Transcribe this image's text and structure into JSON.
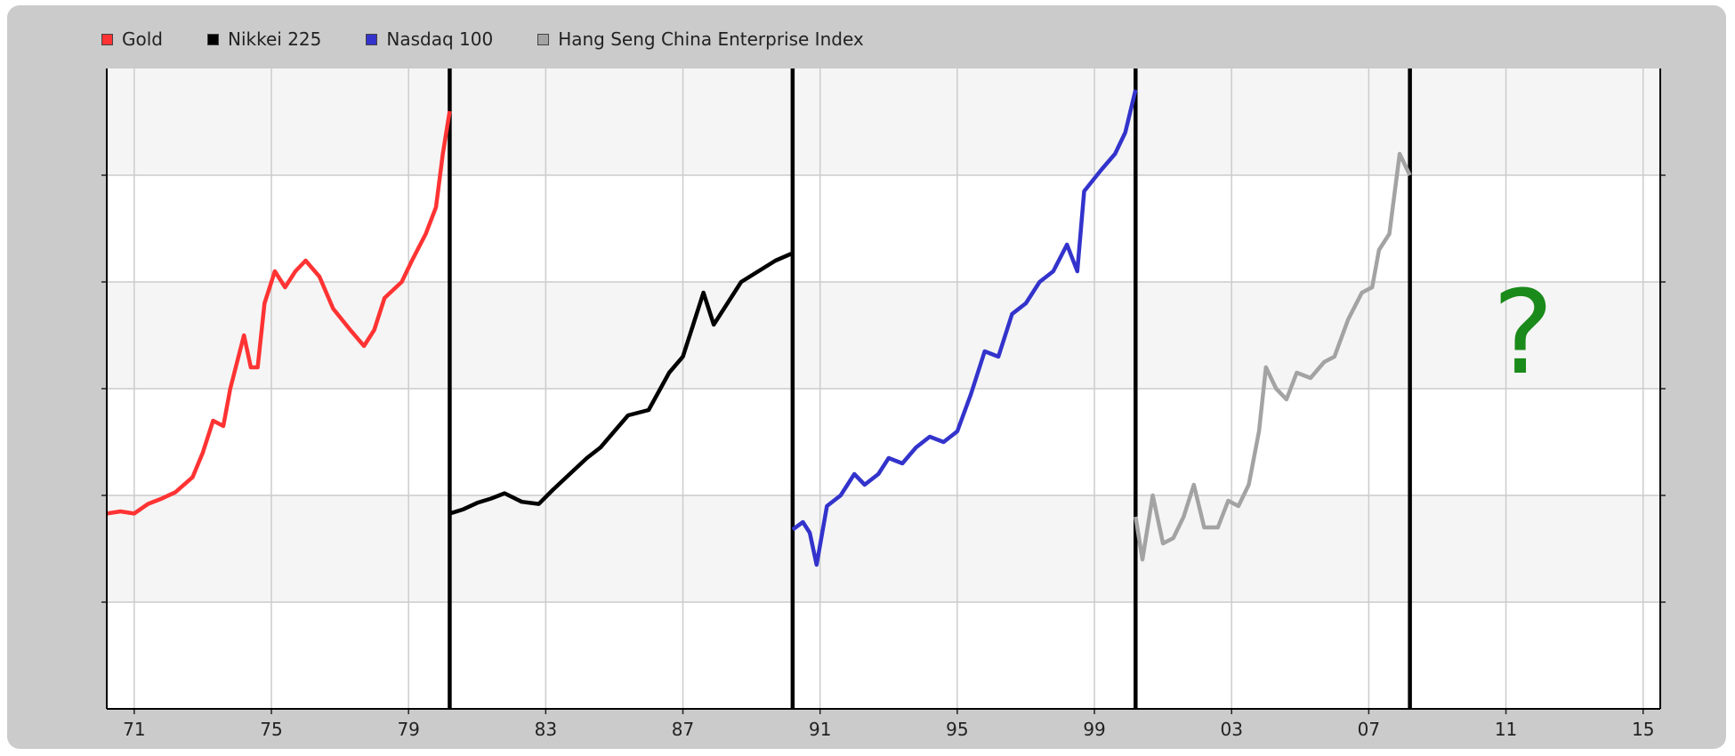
{
  "chart_data": {
    "type": "line",
    "title": "",
    "xlabel": "",
    "ylabel": "",
    "x_axis_kind": "year",
    "xlim": [
      1970.2,
      2015.5
    ],
    "ylim": [
      0,
      6
    ],
    "y_tick_labels_shown": false,
    "grid": true,
    "legend_position": "top-left",
    "x_tick_labels": [
      "71",
      "75",
      "79",
      "83",
      "87",
      "91",
      "95",
      "99",
      "03",
      "07",
      "11",
      "15"
    ],
    "x_tick_years": [
      1971,
      1975,
      1979,
      1983,
      1987,
      1991,
      1995,
      1999,
      2003,
      2007,
      2011,
      2015
    ],
    "period_dividers": [
      1980.2,
      1990.2,
      2000.2,
      2008.2
    ],
    "annotation": {
      "text": "?",
      "year": 2011.5,
      "color": "#1a8a1a"
    },
    "series": [
      {
        "name": "Gold",
        "color": "#ff3333",
        "points": [
          [
            1970.2,
            1.83
          ],
          [
            1970.6,
            1.85
          ],
          [
            1971.0,
            1.83
          ],
          [
            1971.4,
            1.92
          ],
          [
            1971.8,
            1.97
          ],
          [
            1972.2,
            2.03
          ],
          [
            1972.7,
            2.17
          ],
          [
            1973.0,
            2.4
          ],
          [
            1973.3,
            2.7
          ],
          [
            1973.6,
            2.65
          ],
          [
            1973.8,
            3.0
          ],
          [
            1974.2,
            3.5
          ],
          [
            1974.4,
            3.2
          ],
          [
            1974.6,
            3.2
          ],
          [
            1974.8,
            3.8
          ],
          [
            1975.1,
            4.1
          ],
          [
            1975.4,
            3.95
          ],
          [
            1975.7,
            4.1
          ],
          [
            1976.0,
            4.2
          ],
          [
            1976.4,
            4.05
          ],
          [
            1976.8,
            3.75
          ],
          [
            1977.3,
            3.55
          ],
          [
            1977.7,
            3.4
          ],
          [
            1978.0,
            3.55
          ],
          [
            1978.3,
            3.85
          ],
          [
            1978.8,
            4.0
          ],
          [
            1979.1,
            4.2
          ],
          [
            1979.5,
            4.45
          ],
          [
            1979.8,
            4.7
          ],
          [
            1980.0,
            5.2
          ],
          [
            1980.2,
            5.6
          ]
        ]
      },
      {
        "name": "Nikkei 225",
        "color": "#000000",
        "points": [
          [
            1980.2,
            1.83
          ],
          [
            1980.6,
            1.87
          ],
          [
            1981.0,
            1.93
          ],
          [
            1981.4,
            1.97
          ],
          [
            1981.8,
            2.02
          ],
          [
            1982.3,
            1.94
          ],
          [
            1982.8,
            1.92
          ],
          [
            1983.2,
            2.05
          ],
          [
            1983.7,
            2.2
          ],
          [
            1984.2,
            2.35
          ],
          [
            1984.6,
            2.45
          ],
          [
            1985.0,
            2.6
          ],
          [
            1985.4,
            2.75
          ],
          [
            1986.0,
            2.8
          ],
          [
            1986.6,
            3.15
          ],
          [
            1987.0,
            3.3
          ],
          [
            1987.3,
            3.6
          ],
          [
            1987.6,
            3.9
          ],
          [
            1987.9,
            3.6
          ],
          [
            1988.3,
            3.8
          ],
          [
            1988.7,
            4.0
          ],
          [
            1989.2,
            4.1
          ],
          [
            1989.7,
            4.2
          ],
          [
            1990.2,
            4.27
          ]
        ]
      },
      {
        "name": "Nasdaq 100",
        "color": "#3333cc",
        "points": [
          [
            1990.2,
            1.68
          ],
          [
            1990.5,
            1.75
          ],
          [
            1990.7,
            1.65
          ],
          [
            1990.9,
            1.35
          ],
          [
            1991.2,
            1.9
          ],
          [
            1991.6,
            2.0
          ],
          [
            1992.0,
            2.2
          ],
          [
            1992.3,
            2.1
          ],
          [
            1992.7,
            2.2
          ],
          [
            1993.0,
            2.35
          ],
          [
            1993.4,
            2.3
          ],
          [
            1993.8,
            2.45
          ],
          [
            1994.2,
            2.55
          ],
          [
            1994.6,
            2.5
          ],
          [
            1995.0,
            2.6
          ],
          [
            1995.4,
            2.95
          ],
          [
            1995.8,
            3.35
          ],
          [
            1996.2,
            3.3
          ],
          [
            1996.6,
            3.7
          ],
          [
            1997.0,
            3.8
          ],
          [
            1997.4,
            4.0
          ],
          [
            1997.8,
            4.1
          ],
          [
            1998.2,
            4.35
          ],
          [
            1998.5,
            4.1
          ],
          [
            1998.7,
            4.85
          ],
          [
            1999.2,
            5.05
          ],
          [
            1999.6,
            5.2
          ],
          [
            1999.9,
            5.4
          ],
          [
            2000.2,
            5.8
          ]
        ]
      },
      {
        "name": "Hang Seng China Enterprise Index",
        "color": "#a3a3a3",
        "points": [
          [
            2000.2,
            1.8
          ],
          [
            2000.4,
            1.4
          ],
          [
            2000.7,
            2.0
          ],
          [
            2001.0,
            1.55
          ],
          [
            2001.3,
            1.6
          ],
          [
            2001.6,
            1.8
          ],
          [
            2001.9,
            2.1
          ],
          [
            2002.2,
            1.7
          ],
          [
            2002.6,
            1.7
          ],
          [
            2002.9,
            1.95
          ],
          [
            2003.2,
            1.9
          ],
          [
            2003.5,
            2.1
          ],
          [
            2003.8,
            2.6
          ],
          [
            2004.0,
            3.2
          ],
          [
            2004.3,
            3.0
          ],
          [
            2004.6,
            2.9
          ],
          [
            2004.9,
            3.15
          ],
          [
            2005.3,
            3.1
          ],
          [
            2005.7,
            3.25
          ],
          [
            2006.0,
            3.3
          ],
          [
            2006.4,
            3.65
          ],
          [
            2006.8,
            3.9
          ],
          [
            2007.1,
            3.95
          ],
          [
            2007.3,
            4.3
          ],
          [
            2007.6,
            4.45
          ],
          [
            2007.9,
            5.2
          ],
          [
            2008.2,
            5.0
          ]
        ]
      }
    ]
  }
}
